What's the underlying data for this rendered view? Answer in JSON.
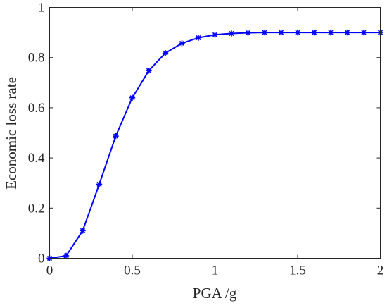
{
  "chart_data": {
    "type": "line",
    "xlabel": "PGA /g",
    "ylabel": "Economic loss rate",
    "xlim": [
      0,
      2
    ],
    "ylim": [
      0,
      1
    ],
    "x_ticks": [
      "0",
      "0.5",
      "1",
      "1.5",
      "2"
    ],
    "y_ticks": [
      "0",
      "0.2",
      "0.4",
      "0.6",
      "0.8",
      "1"
    ],
    "x_tick_values": [
      0,
      0.5,
      1,
      1.5,
      2
    ],
    "y_tick_values": [
      0,
      0.2,
      0.4,
      0.6,
      0.8,
      1
    ],
    "grid": false,
    "series": [
      {
        "color": "#0000ff",
        "marker": "asterisk",
        "x": [
          0,
          0.1,
          0.2,
          0.3,
          0.4,
          0.5,
          0.6,
          0.7,
          0.8,
          0.9,
          1.0,
          1.1,
          1.2,
          1.3,
          1.4,
          1.5,
          1.6,
          1.7,
          1.8,
          1.9,
          2.0
        ],
        "y": [
          0,
          0.01,
          0.11,
          0.295,
          0.487,
          0.64,
          0.748,
          0.818,
          0.857,
          0.879,
          0.891,
          0.896,
          0.899,
          0.9,
          0.9,
          0.9,
          0.9,
          0.9,
          0.9,
          0.9,
          0.9
        ]
      }
    ]
  }
}
